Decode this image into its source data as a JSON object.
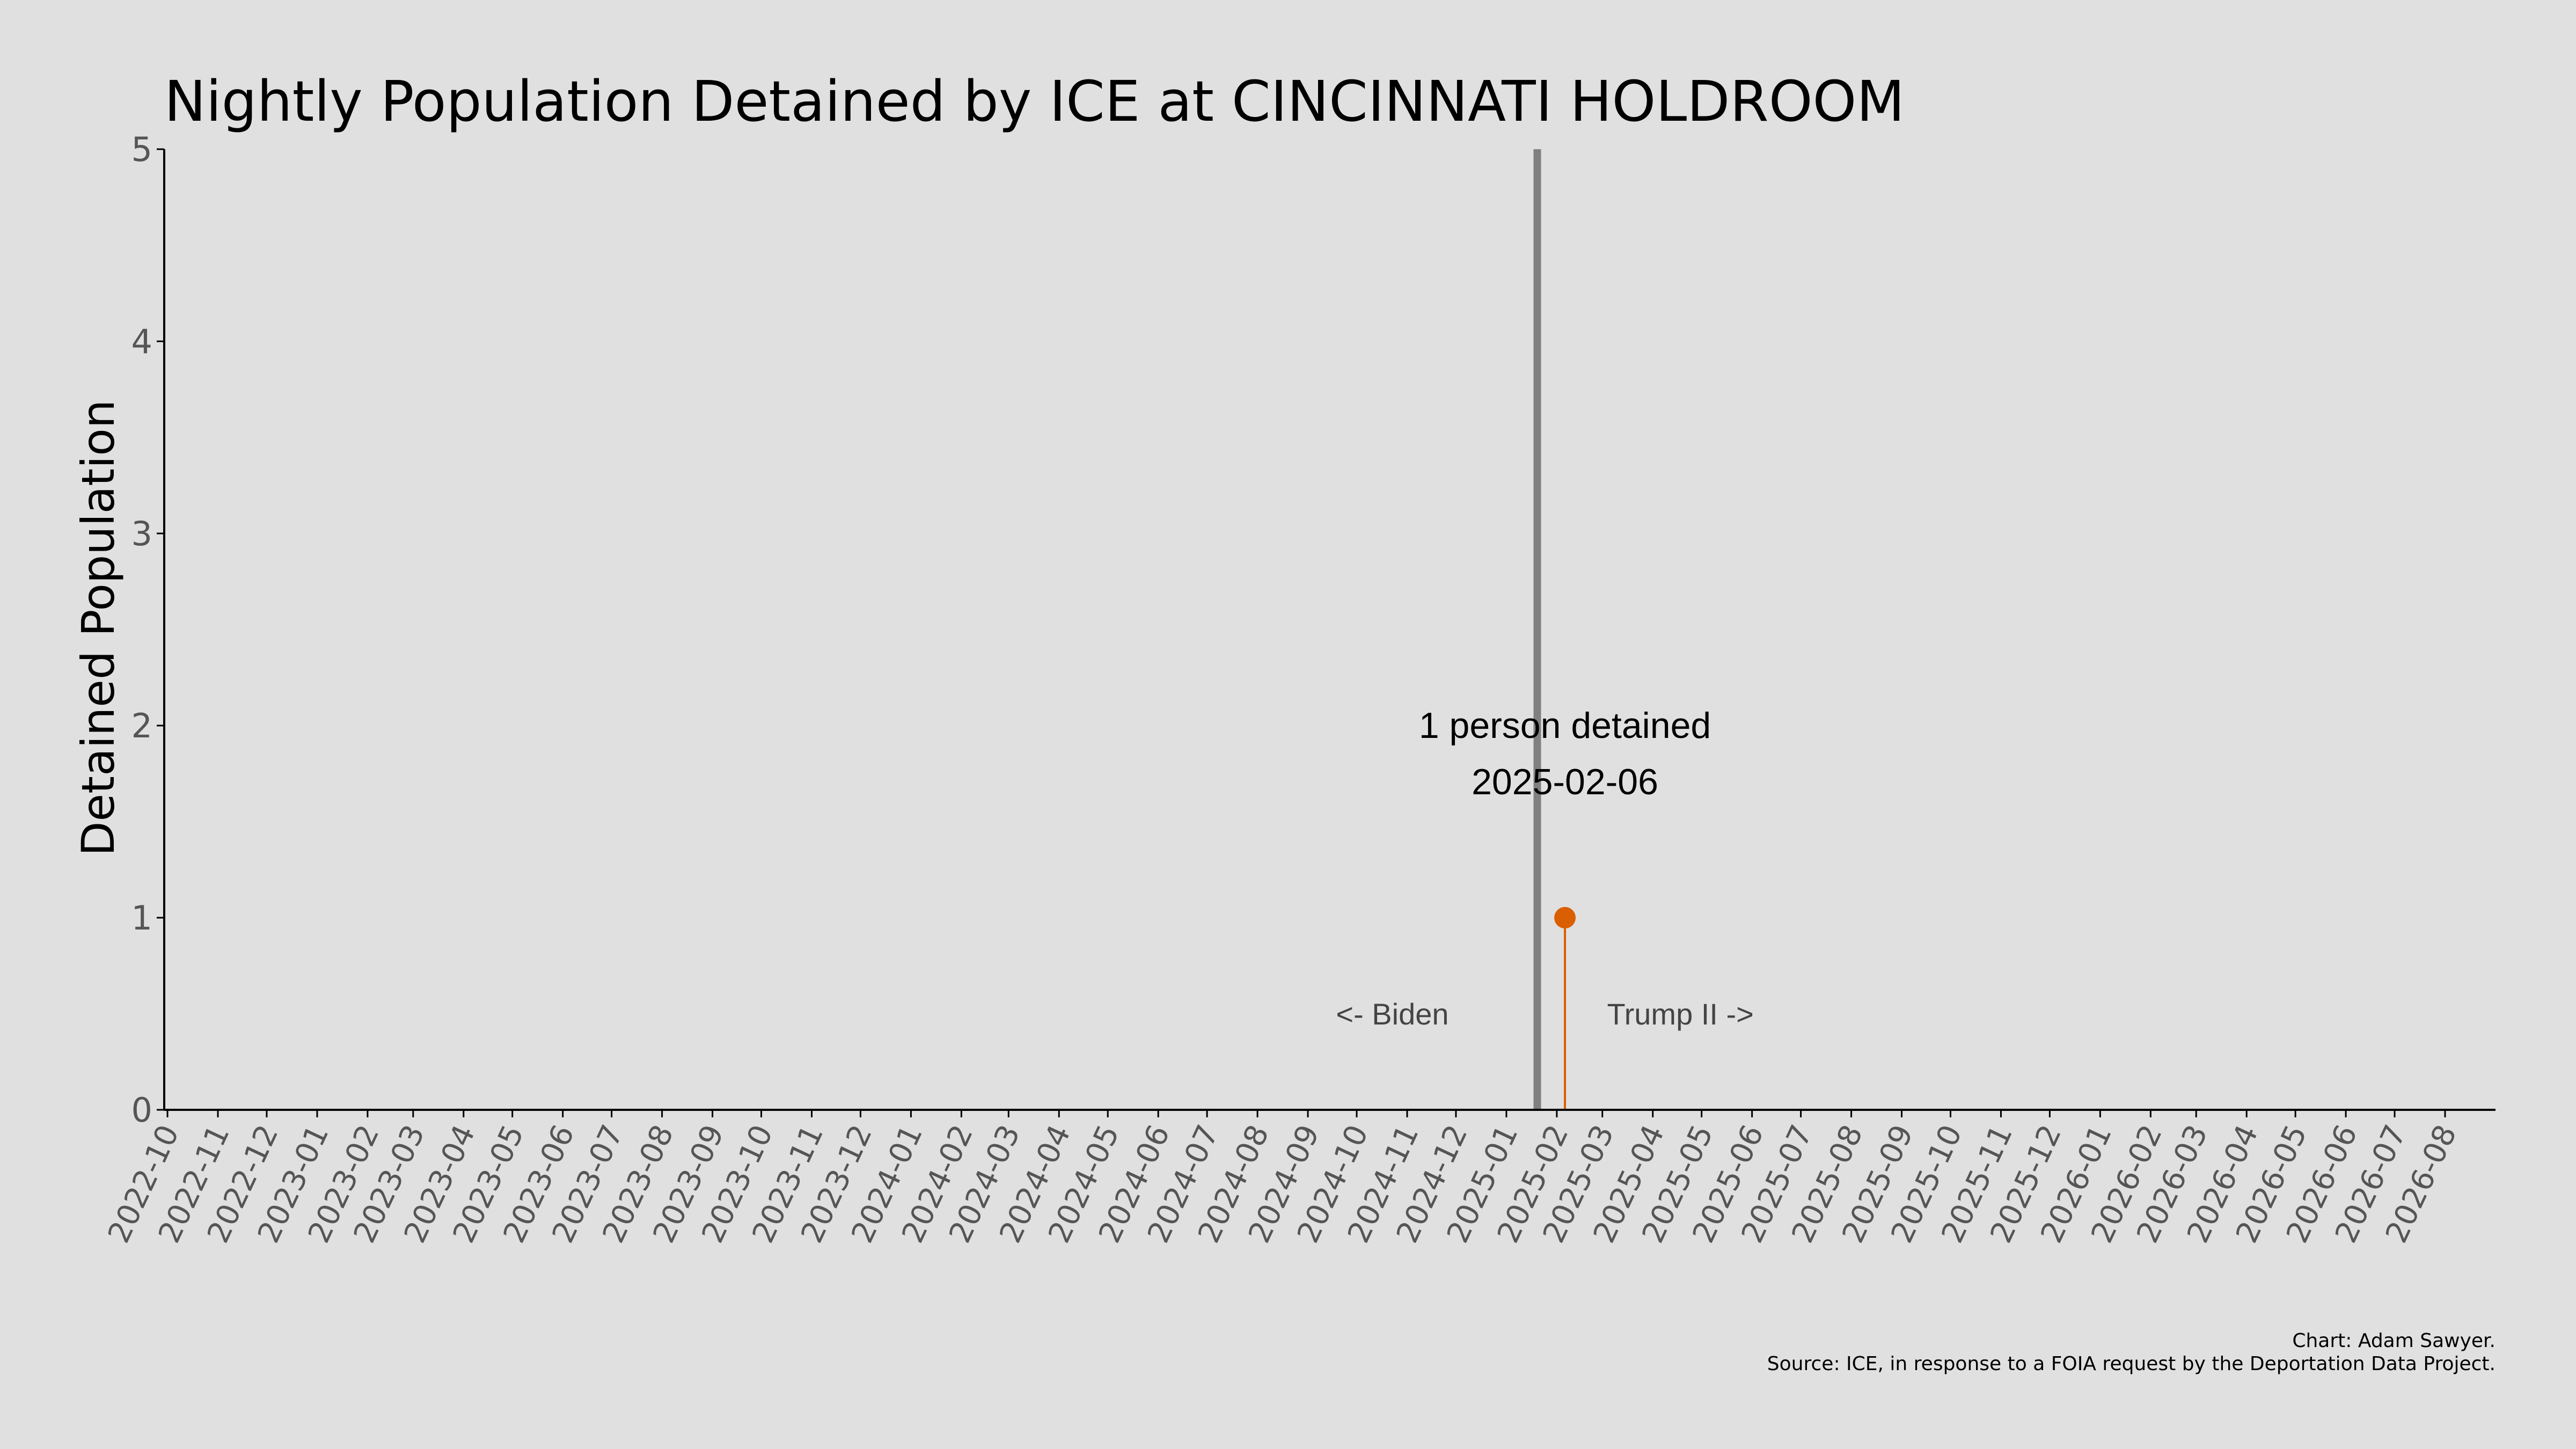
{
  "chart_data": {
    "type": "scatter",
    "title": "Nightly Population Detained by ICE at CINCINNATI HOLDROOM",
    "xlabel": "",
    "ylabel": "Detained Population",
    "ylim": [
      0,
      5
    ],
    "yticks": [
      0,
      1,
      2,
      3,
      4,
      5
    ],
    "xlim": [
      "2022-09-29",
      "2026-09-01"
    ],
    "xtick_labels": [
      "2022-10",
      "2022-11",
      "2022-12",
      "2023-01",
      "2023-02",
      "2023-03",
      "2023-04",
      "2023-05",
      "2023-06",
      "2023-07",
      "2023-08",
      "2023-09",
      "2023-10",
      "2023-11",
      "2023-12",
      "2024-01",
      "2024-02",
      "2024-03",
      "2024-04",
      "2024-05",
      "2024-06",
      "2024-07",
      "2024-08",
      "2024-09",
      "2024-10",
      "2024-11",
      "2024-12",
      "2025-01",
      "2025-02",
      "2025-03",
      "2025-04",
      "2025-05",
      "2025-06",
      "2025-07",
      "2025-08",
      "2025-09",
      "2025-10",
      "2025-11",
      "2025-12",
      "2026-01",
      "2026-02",
      "2026-03",
      "2026-04",
      "2026-05",
      "2026-06",
      "2026-07",
      "2026-08"
    ],
    "series": [
      {
        "color": "#d95f02",
        "points": [
          {
            "x": "2025-02-06",
            "y": 1
          }
        ]
      }
    ],
    "vline": {
      "x": "2025-01-20",
      "color": "#808080"
    },
    "annotation": {
      "line1": "1 person detained",
      "line2": "2025-02-06"
    },
    "era_labels": {
      "left": "<- Biden",
      "right": "Trump II ->"
    },
    "grid": false,
    "legend": "none"
  },
  "caption": {
    "line1": "Chart: Adam Sawyer.",
    "line2": "Source: ICE, in response to a FOIA request by the Deportation Data Project."
  }
}
